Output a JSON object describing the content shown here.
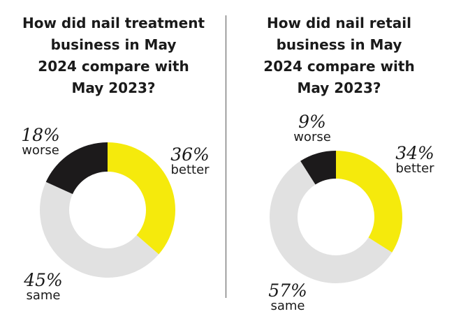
{
  "colors": {
    "better": "#f5ea0c",
    "same": "#e1e1e1",
    "worse": "#1c1a1b"
  },
  "chart_data": [
    {
      "type": "pie",
      "title": "How did nail treatment\nbusiness in May\n2024 compare with\nMay 2023?",
      "slices": [
        {
          "label": "better",
          "value": 36,
          "display": "36%"
        },
        {
          "label": "same",
          "value": 45,
          "display": "45%"
        },
        {
          "label": "worse",
          "value": 18,
          "display": "18%"
        }
      ]
    },
    {
      "type": "pie",
      "title": "How did nail retail\nbusiness in May\n2024 compare with\nMay 2023?",
      "slices": [
        {
          "label": "better",
          "value": 34,
          "display": "34%"
        },
        {
          "label": "same",
          "value": 57,
          "display": "57%"
        },
        {
          "label": "worse",
          "value": 9,
          "display": "9%"
        }
      ]
    }
  ]
}
